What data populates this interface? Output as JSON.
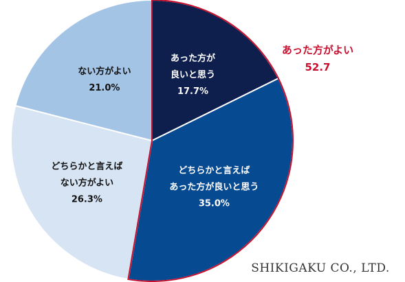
{
  "chart_data": {
    "type": "pie",
    "start": "top",
    "direction": "clockwise",
    "slices": [
      {
        "lines": [
          "あった方が",
          "良いと思う"
        ],
        "value": 17.7,
        "value_label": "17.7%",
        "color": "#0f1f4d",
        "text_color": "#ffffff"
      },
      {
        "lines": [
          "どちらかと言えば",
          "あった方が良いと思う"
        ],
        "value": 35.0,
        "value_label": "35.0%",
        "color": "#064a92",
        "text_color": "#ffffff"
      },
      {
        "lines": [
          "どちらかと言えば",
          "ない方がよい"
        ],
        "value": 26.3,
        "value_label": "26.3%",
        "color": "#d6e4f3",
        "text_color": "#111111"
      },
      {
        "lines": [
          "ない方がよい"
        ],
        "value": 21.0,
        "value_label": "21.0%",
        "color": "#a4c4e6",
        "text_color": "#111111"
      }
    ],
    "highlight": {
      "slices": [
        0,
        1
      ],
      "outline_color": "#c8102e",
      "label": "あった方がよい",
      "value": "52.7"
    }
  },
  "watermark": "SHIKIGAKU CO., LTD."
}
